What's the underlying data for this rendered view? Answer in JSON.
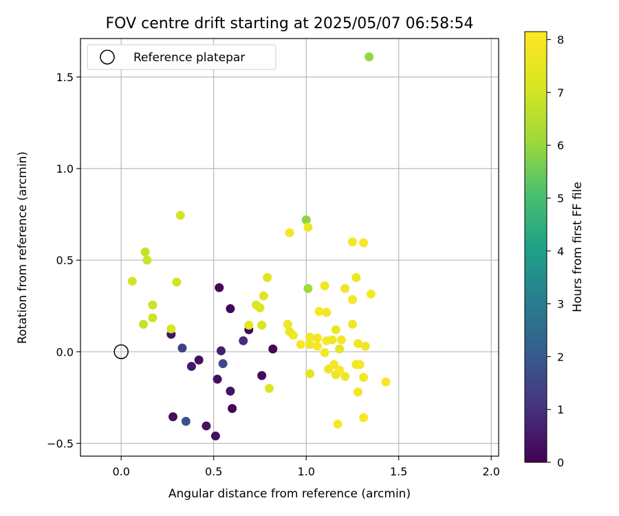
{
  "chart_data": {
    "type": "scatter",
    "title": "FOV centre drift starting at 2025/05/07 06:58:54",
    "xlabel": "Angular distance from reference (arcmin)",
    "ylabel": "Rotation from reference (arcmin)",
    "xlim": [
      -0.22,
      2.04
    ],
    "ylim": [
      -0.57,
      1.71
    ],
    "xticks": [
      0.0,
      0.5,
      1.0,
      1.5,
      2.0
    ],
    "xtick_labels": [
      "0.0",
      "0.5",
      "1.0",
      "1.5",
      "2.0"
    ],
    "yticks": [
      -0.5,
      0.0,
      0.5,
      1.0,
      1.5
    ],
    "ytick_labels": [
      "−0.5",
      "0.0",
      "0.5",
      "1.0",
      "1.5"
    ],
    "grid": true,
    "legend": {
      "position": "top-left",
      "entries": [
        {
          "label": "Reference platepar",
          "marker": "open-circle"
        }
      ]
    },
    "reference_point": {
      "x": 0.0,
      "y": 0.0
    },
    "colorbar": {
      "label": "Hours from first FF file",
      "colormap": "viridis",
      "range": [
        0,
        8.15
      ],
      "ticks": [
        0,
        1,
        2,
        3,
        4,
        5,
        6,
        7,
        8
      ],
      "tick_labels": [
        "0",
        "1",
        "2",
        "3",
        "4",
        "5",
        "6",
        "7",
        "8"
      ]
    },
    "points": [
      {
        "x": 0.53,
        "y": 0.35,
        "c": 0.1
      },
      {
        "x": 0.59,
        "y": 0.235,
        "c": 0.1
      },
      {
        "x": 0.69,
        "y": 0.12,
        "c": 0.2
      },
      {
        "x": 0.82,
        "y": 0.015,
        "c": 0.1
      },
      {
        "x": 0.27,
        "y": 0.095,
        "c": 0.4
      },
      {
        "x": 0.33,
        "y": 0.02,
        "c": 1.4
      },
      {
        "x": 0.54,
        "y": 0.005,
        "c": 0.6
      },
      {
        "x": 0.66,
        "y": 0.06,
        "c": 0.9
      },
      {
        "x": 0.42,
        "y": -0.045,
        "c": 0.3
      },
      {
        "x": 0.38,
        "y": -0.08,
        "c": 0.5
      },
      {
        "x": 0.55,
        "y": -0.065,
        "c": 1.6
      },
      {
        "x": 0.52,
        "y": -0.15,
        "c": 0.3
      },
      {
        "x": 0.76,
        "y": -0.13,
        "c": 0.2
      },
      {
        "x": 0.59,
        "y": -0.215,
        "c": 0.4
      },
      {
        "x": 0.6,
        "y": -0.31,
        "c": 0.1
      },
      {
        "x": 0.28,
        "y": -0.355,
        "c": 0.3
      },
      {
        "x": 0.35,
        "y": -0.38,
        "c": 1.8
      },
      {
        "x": 0.46,
        "y": -0.405,
        "c": 0.4
      },
      {
        "x": 0.51,
        "y": -0.46,
        "c": 0.3
      },
      {
        "x": 1.34,
        "y": 1.61,
        "c": 6.0
      },
      {
        "x": 1.0,
        "y": 0.72,
        "c": 5.9
      },
      {
        "x": 1.01,
        "y": 0.345,
        "c": 6.1
      },
      {
        "x": 0.32,
        "y": 0.745,
        "c": 7.0
      },
      {
        "x": 0.13,
        "y": 0.545,
        "c": 6.8
      },
      {
        "x": 0.14,
        "y": 0.5,
        "c": 6.9
      },
      {
        "x": 0.06,
        "y": 0.385,
        "c": 7.0
      },
      {
        "x": 0.3,
        "y": 0.38,
        "c": 7.0
      },
      {
        "x": 0.17,
        "y": 0.255,
        "c": 6.9
      },
      {
        "x": 0.17,
        "y": 0.185,
        "c": 6.9
      },
      {
        "x": 0.12,
        "y": 0.15,
        "c": 6.8
      },
      {
        "x": 0.27,
        "y": 0.125,
        "c": 7.1
      },
      {
        "x": 0.79,
        "y": 0.405,
        "c": 7.3
      },
      {
        "x": 0.77,
        "y": 0.305,
        "c": 7.3
      },
      {
        "x": 0.73,
        "y": 0.255,
        "c": 7.3
      },
      {
        "x": 0.75,
        "y": 0.24,
        "c": 7.2
      },
      {
        "x": 0.69,
        "y": 0.145,
        "c": 7.4
      },
      {
        "x": 0.76,
        "y": 0.145,
        "c": 7.2
      },
      {
        "x": 0.8,
        "y": -0.2,
        "c": 7.3
      },
      {
        "x": 0.91,
        "y": 0.65,
        "c": 7.9
      },
      {
        "x": 1.01,
        "y": 0.68,
        "c": 7.7
      },
      {
        "x": 1.25,
        "y": 0.6,
        "c": 7.9
      },
      {
        "x": 1.31,
        "y": 0.595,
        "c": 8.0
      },
      {
        "x": 1.27,
        "y": 0.405,
        "c": 7.7
      },
      {
        "x": 1.1,
        "y": 0.36,
        "c": 7.8
      },
      {
        "x": 1.21,
        "y": 0.345,
        "c": 7.8
      },
      {
        "x": 1.35,
        "y": 0.315,
        "c": 7.9
      },
      {
        "x": 1.25,
        "y": 0.285,
        "c": 7.9
      },
      {
        "x": 1.07,
        "y": 0.22,
        "c": 8.0
      },
      {
        "x": 1.11,
        "y": 0.215,
        "c": 7.8
      },
      {
        "x": 0.9,
        "y": 0.15,
        "c": 7.7
      },
      {
        "x": 1.25,
        "y": 0.15,
        "c": 7.8
      },
      {
        "x": 1.16,
        "y": 0.12,
        "c": 7.6
      },
      {
        "x": 0.91,
        "y": 0.11,
        "c": 7.6
      },
      {
        "x": 0.93,
        "y": 0.09,
        "c": 7.8
      },
      {
        "x": 1.02,
        "y": 0.08,
        "c": 7.9
      },
      {
        "x": 1.06,
        "y": 0.075,
        "c": 7.8
      },
      {
        "x": 1.11,
        "y": 0.06,
        "c": 7.9
      },
      {
        "x": 1.14,
        "y": 0.065,
        "c": 7.8
      },
      {
        "x": 1.19,
        "y": 0.065,
        "c": 7.9
      },
      {
        "x": 0.97,
        "y": 0.04,
        "c": 7.9
      },
      {
        "x": 1.02,
        "y": 0.04,
        "c": 7.8
      },
      {
        "x": 1.06,
        "y": 0.03,
        "c": 7.9
      },
      {
        "x": 1.28,
        "y": 0.045,
        "c": 7.8
      },
      {
        "x": 1.32,
        "y": 0.03,
        "c": 7.8
      },
      {
        "x": 1.18,
        "y": 0.015,
        "c": 7.5
      },
      {
        "x": 1.1,
        "y": -0.005,
        "c": 7.9
      },
      {
        "x": 1.02,
        "y": -0.12,
        "c": 7.4
      },
      {
        "x": 1.12,
        "y": -0.095,
        "c": 7.8
      },
      {
        "x": 1.15,
        "y": -0.07,
        "c": 7.9
      },
      {
        "x": 1.18,
        "y": -0.1,
        "c": 8.0
      },
      {
        "x": 1.16,
        "y": -0.125,
        "c": 7.7
      },
      {
        "x": 1.21,
        "y": -0.135,
        "c": 7.8
      },
      {
        "x": 1.27,
        "y": -0.07,
        "c": 7.8
      },
      {
        "x": 1.29,
        "y": -0.07,
        "c": 7.9
      },
      {
        "x": 1.31,
        "y": -0.14,
        "c": 7.9
      },
      {
        "x": 1.43,
        "y": -0.165,
        "c": 7.9
      },
      {
        "x": 1.28,
        "y": -0.22,
        "c": 7.8
      },
      {
        "x": 1.17,
        "y": -0.395,
        "c": 8.0
      },
      {
        "x": 1.31,
        "y": -0.36,
        "c": 7.9
      }
    ]
  }
}
